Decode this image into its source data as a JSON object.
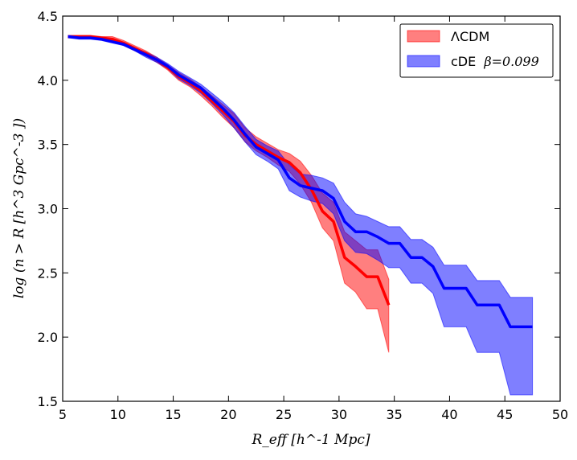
{
  "chart_data": {
    "type": "line",
    "xlim": [
      5,
      50
    ],
    "ylim": [
      1.5,
      4.5
    ],
    "xticks": [
      5,
      10,
      15,
      20,
      25,
      30,
      35,
      40,
      45,
      50
    ],
    "yticks": [
      1.5,
      2.0,
      2.5,
      3.0,
      3.5,
      4.0,
      4.5
    ],
    "xtick_labels": [
      "5",
      "10",
      "15",
      "20",
      "25",
      "30",
      "35",
      "40",
      "45",
      "50"
    ],
    "ytick_labels": [
      "1.5",
      "2.0",
      "2.5",
      "3.0",
      "3.5",
      "4.0",
      "4.5"
    ],
    "xlabel": "R_eff [h^-1 Mpc]",
    "ylabel": "log (n > R [h^3  Gpc^-3 ])",
    "legend_position": "top-right",
    "series": [
      {
        "name": "ΛCDM",
        "legend_label": "ΛCDM",
        "color": "#ff0000",
        "x": [
          5.5,
          6.5,
          7.5,
          8.5,
          9.5,
          10.5,
          11.5,
          12.5,
          13.5,
          14.5,
          15.5,
          16.5,
          17.5,
          18.5,
          19.5,
          20.5,
          21.5,
          22.5,
          23.5,
          24.5,
          25.5,
          26.5,
          27.5,
          28.5,
          29.5,
          30.5,
          31.5,
          32.5,
          33.5,
          34.5
        ],
        "y": [
          4.34,
          4.34,
          4.34,
          4.33,
          4.32,
          4.29,
          4.25,
          4.21,
          4.16,
          4.1,
          4.03,
          3.98,
          3.92,
          3.84,
          3.76,
          3.68,
          3.57,
          3.5,
          3.45,
          3.4,
          3.36,
          3.28,
          3.15,
          2.98,
          2.9,
          2.62,
          2.55,
          2.47,
          2.47,
          2.25
        ],
        "lower": [
          4.33,
          4.33,
          4.33,
          4.32,
          4.3,
          4.27,
          4.23,
          4.19,
          4.14,
          4.08,
          4.0,
          3.95,
          3.88,
          3.8,
          3.71,
          3.63,
          3.52,
          3.45,
          3.4,
          3.34,
          3.29,
          3.19,
          3.05,
          2.85,
          2.75,
          2.42,
          2.35,
          2.22,
          2.22,
          1.88
        ],
        "upper": [
          4.35,
          4.35,
          4.35,
          4.34,
          4.34,
          4.31,
          4.27,
          4.23,
          4.18,
          4.12,
          4.06,
          4.01,
          3.95,
          3.88,
          3.81,
          3.74,
          3.63,
          3.56,
          3.51,
          3.46,
          3.43,
          3.37,
          3.26,
          3.12,
          3.05,
          2.82,
          2.75,
          2.68,
          2.68,
          2.45
        ]
      },
      {
        "name": "cDE β=0.099",
        "legend_label": "cDE",
        "legend_math": "β=0.099",
        "color": "#0000ff",
        "x": [
          5.5,
          6.5,
          7.5,
          8.5,
          9.5,
          10.5,
          11.5,
          12.5,
          13.5,
          14.5,
          15.5,
          16.5,
          17.5,
          18.5,
          19.5,
          20.5,
          21.5,
          22.5,
          23.5,
          24.5,
          25.5,
          26.5,
          27.5,
          28.5,
          29.5,
          30.5,
          31.5,
          32.5,
          33.5,
          34.5,
          35.5,
          36.5,
          37.5,
          38.5,
          39.5,
          40.5,
          41.5,
          42.5,
          43.5,
          44.5,
          45.5,
          46.5,
          47.5
        ],
        "y": [
          4.34,
          4.33,
          4.33,
          4.32,
          4.3,
          4.28,
          4.24,
          4.2,
          4.16,
          4.11,
          4.04,
          3.99,
          3.94,
          3.86,
          3.78,
          3.69,
          3.58,
          3.48,
          3.43,
          3.38,
          3.24,
          3.18,
          3.16,
          3.14,
          3.08,
          2.9,
          2.82,
          2.82,
          2.78,
          2.73,
          2.73,
          2.62,
          2.62,
          2.55,
          2.38,
          2.38,
          2.38,
          2.25,
          2.25,
          2.25,
          2.08,
          2.08,
          2.08
        ],
        "lower": [
          4.33,
          4.32,
          4.32,
          4.31,
          4.29,
          4.27,
          4.23,
          4.18,
          4.14,
          4.09,
          4.01,
          3.96,
          3.9,
          3.82,
          3.73,
          3.63,
          3.52,
          3.42,
          3.37,
          3.31,
          3.14,
          3.09,
          3.06,
          3.04,
          2.96,
          2.75,
          2.66,
          2.65,
          2.6,
          2.54,
          2.54,
          2.42,
          2.42,
          2.34,
          2.08,
          2.08,
          2.08,
          1.88,
          1.88,
          1.88,
          1.55,
          1.55,
          1.55
        ],
        "upper": [
          4.35,
          4.34,
          4.34,
          4.33,
          4.31,
          4.29,
          4.25,
          4.22,
          4.18,
          4.13,
          4.07,
          4.02,
          3.97,
          3.9,
          3.83,
          3.75,
          3.64,
          3.54,
          3.49,
          3.45,
          3.34,
          3.27,
          3.26,
          3.24,
          3.2,
          3.05,
          2.96,
          2.94,
          2.9,
          2.86,
          2.86,
          2.76,
          2.76,
          2.7,
          2.56,
          2.56,
          2.56,
          2.44,
          2.44,
          2.44,
          2.31,
          2.31,
          2.31
        ]
      }
    ]
  }
}
